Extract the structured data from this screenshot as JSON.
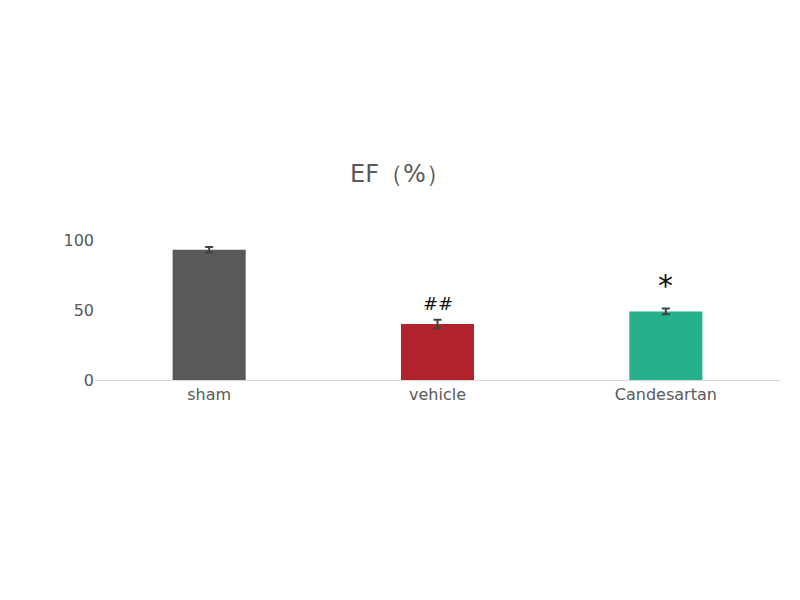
{
  "chart_data": {
    "type": "bar",
    "title": "EF（%）",
    "categories": [
      "sham",
      "vehicle",
      "Candesartan"
    ],
    "values": [
      93,
      40,
      49
    ],
    "errors": [
      2,
      3,
      2
    ],
    "colors": [
      "#595959",
      "#b0232a",
      "#26b08c"
    ],
    "ylim": [
      0,
      100
    ],
    "yticks": [
      0,
      50,
      100
    ],
    "grid": false,
    "annotations": [
      {
        "x": "vehicle",
        "text": "##"
      },
      {
        "x": "Candesartan",
        "text": "*"
      }
    ]
  }
}
